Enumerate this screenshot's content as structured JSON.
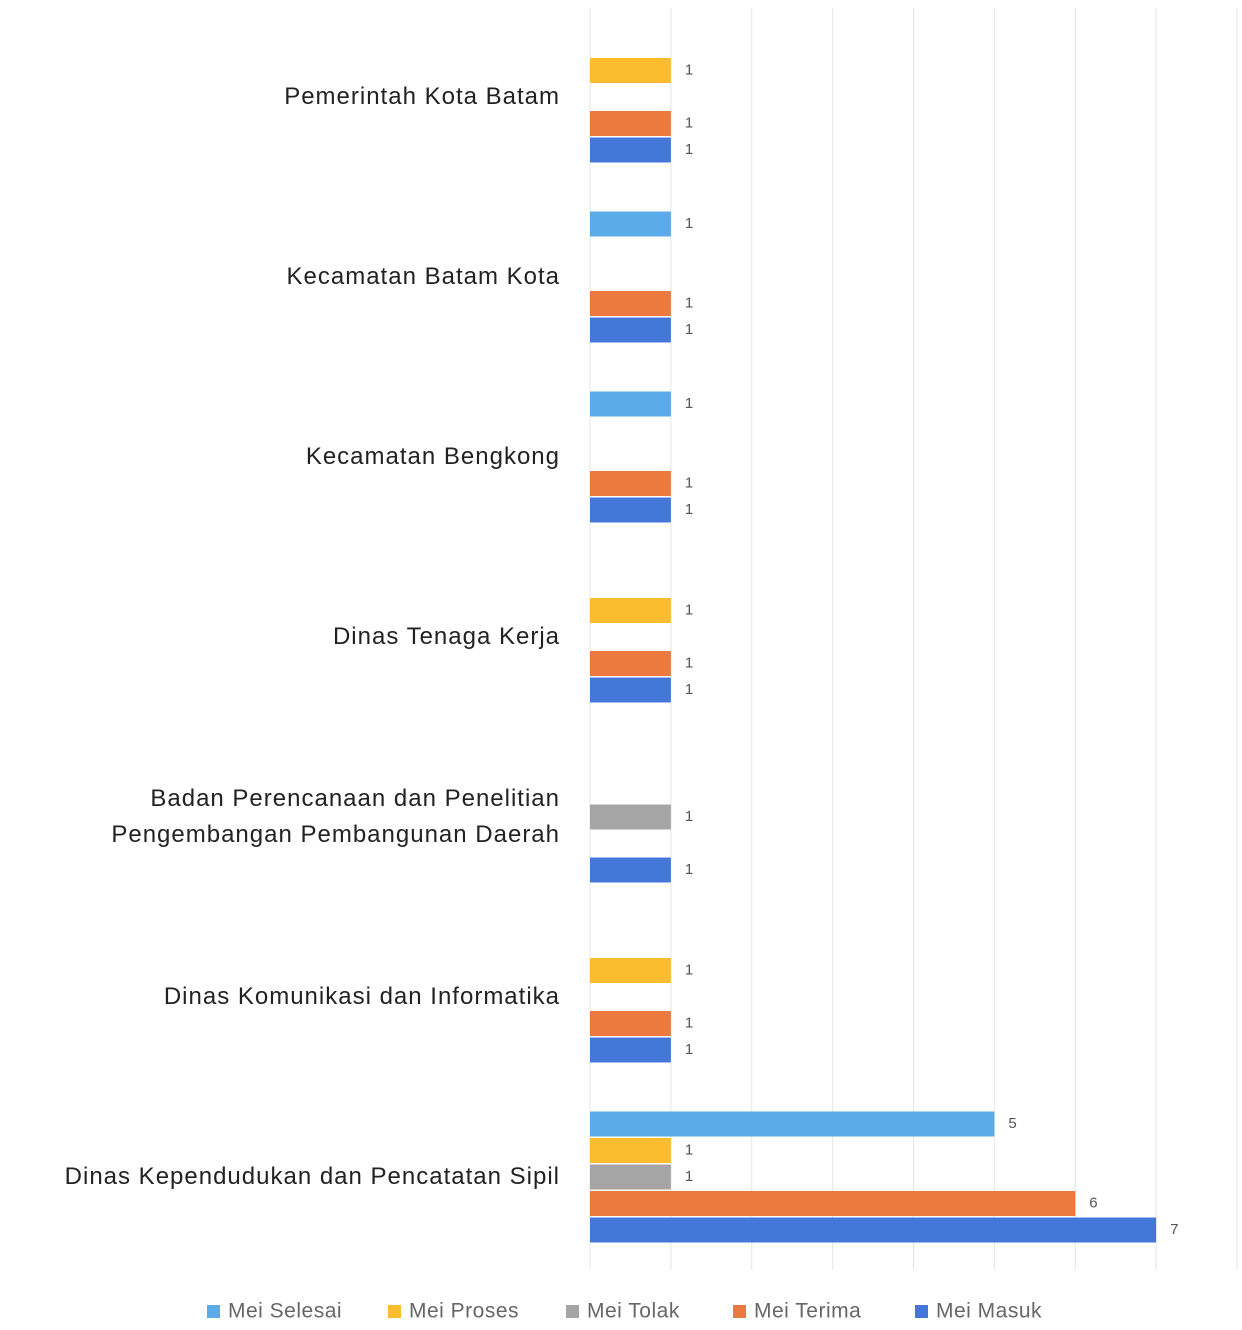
{
  "chart_data": {
    "type": "bar",
    "orientation": "horizontal",
    "categories": [
      "Pemerintah Kota Batam",
      "Kecamatan Batam Kota",
      "Kecamatan Bengkong",
      "Dinas Tenaga Kerja",
      "Badan Perencanaan dan Penelitian Pengembangan Pembangunan Daerah",
      "Dinas Komunikasi dan Informatika",
      "Dinas Kependudukan dan Pencatatan Sipil"
    ],
    "series": [
      {
        "name": "Mei Selesai",
        "color": "#5aabe8",
        "values": [
          null,
          1,
          1,
          null,
          null,
          null,
          5
        ]
      },
      {
        "name": "Mei Proses",
        "color": "#fbbc2e",
        "values": [
          1,
          null,
          null,
          1,
          null,
          1,
          1
        ]
      },
      {
        "name": "Mei Tolak",
        "color": "#a5a5a5",
        "values": [
          null,
          null,
          null,
          null,
          1,
          null,
          1
        ]
      },
      {
        "name": "Mei Terima",
        "color": "#ec7a3e",
        "values": [
          1,
          1,
          1,
          1,
          null,
          1,
          6
        ]
      },
      {
        "name": "Mei Masuk",
        "color": "#4478d8",
        "values": [
          1,
          1,
          1,
          1,
          1,
          1,
          7
        ]
      }
    ],
    "xlim": [
      0,
      8
    ],
    "xticks": [
      0,
      1,
      2,
      3,
      4,
      5,
      6,
      7,
      8
    ],
    "grid": true,
    "legend": "bottom"
  }
}
